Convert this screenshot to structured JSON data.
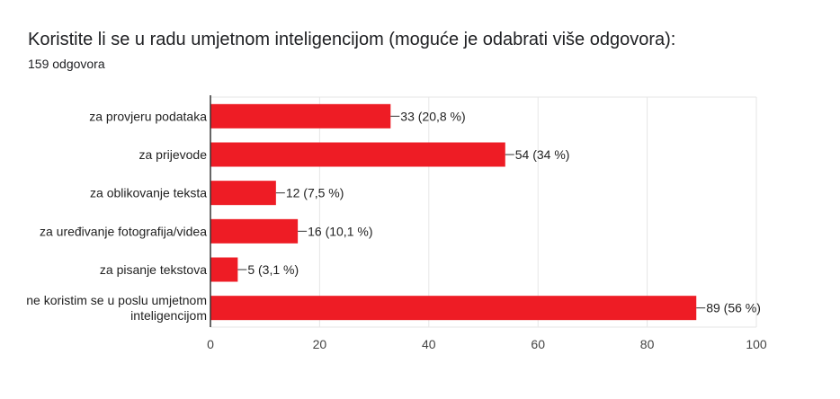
{
  "header": {
    "title": "Koristite li se u radu umjetnom inteligencijom (moguće je odabrati više odgovora):",
    "response_count": "159 odgovora"
  },
  "colors": {
    "bar": "#ee1c25",
    "grid": "#e6e6e6",
    "axis": "#333333"
  },
  "chart_data": {
    "type": "bar",
    "orientation": "horizontal",
    "categories": [
      [
        "za provjeru podataka"
      ],
      [
        "za prijevode"
      ],
      [
        "za oblikovanje teksta"
      ],
      [
        "za uređivanje fotografija/videa"
      ],
      [
        "za pisanje tekstova"
      ],
      [
        "ne koristim se u poslu umjetnom",
        "inteligencijom"
      ]
    ],
    "values": [
      33,
      54,
      12,
      16,
      5,
      89
    ],
    "data_labels": [
      "33 (20,8 %)",
      "54 (34 %)",
      "12 (7,5 %)",
      "16 (10,1 %)",
      "5 (3,1 %)",
      "89 (56 %)"
    ],
    "x_ticks": [
      0,
      20,
      40,
      60,
      80,
      100
    ],
    "xlim": [
      0,
      100
    ],
    "title": "Koristite li se u radu umjetnom inteligencijom (moguće je odabrati više odgovora):",
    "xlabel": "",
    "ylabel": "",
    "grid": true,
    "legend": "none"
  }
}
